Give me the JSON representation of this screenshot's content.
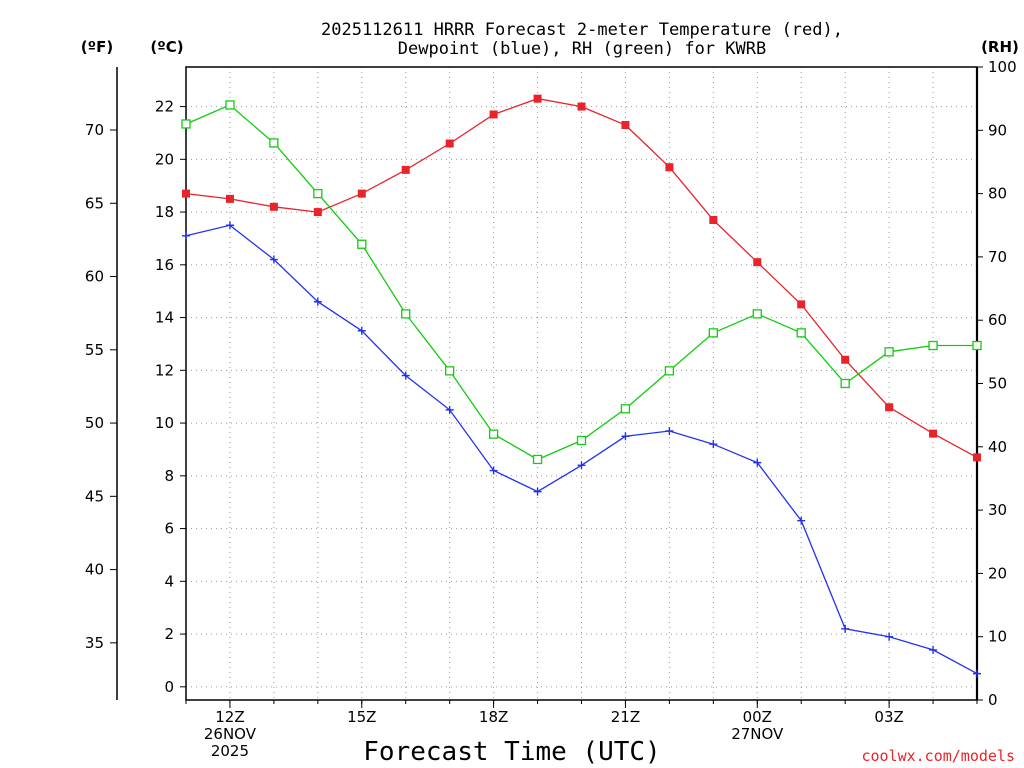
{
  "chart_data": {
    "type": "line",
    "title_line1": "2025112611 HRRR Forecast 2-meter Temperature (red),",
    "title_line2": "Dewpoint (blue), RH (green) for KWRB",
    "xlabel": "Forecast Time (UTC)",
    "credit": "coolwx.com/models",
    "colors": {
      "temperature": "#e8232a",
      "dewpoint": "#2233ee",
      "rh": "#11cc11",
      "grid": "#999999"
    },
    "axes": {
      "left_f": {
        "unit": "(ºF)",
        "ticks": [
          35,
          40,
          45,
          50,
          55,
          60,
          65,
          70
        ]
      },
      "left_c": {
        "unit": "(ºC)",
        "ylim": [
          -0.5,
          23.5
        ],
        "ticks": [
          0,
          2,
          4,
          6,
          8,
          10,
          12,
          14,
          16,
          18,
          20,
          22
        ]
      },
      "right_rh": {
        "unit": "(RH)",
        "ylim": [
          0,
          100
        ],
        "ticks": [
          0,
          10,
          20,
          30,
          40,
          50,
          60,
          70,
          80,
          90,
          100
        ]
      }
    },
    "x": {
      "hours": [
        11,
        12,
        13,
        14,
        15,
        16,
        17,
        18,
        19,
        20,
        21,
        22,
        23,
        24,
        25,
        26,
        27,
        28,
        29
      ],
      "xlim": [
        11,
        29
      ],
      "tick_hours": [
        12,
        15,
        18,
        21,
        24,
        27
      ],
      "tick_labels": [
        [
          "12Z",
          "26NOV",
          "2025"
        ],
        [
          "15Z"
        ],
        [
          "18Z"
        ],
        [
          "21Z"
        ],
        [
          "00Z",
          "27NOV"
        ],
        [
          "03Z"
        ]
      ]
    },
    "series": [
      {
        "name": "Temperature",
        "unit": "C",
        "marker": "filled-square",
        "values": [
          18.7,
          18.5,
          18.2,
          18.0,
          18.7,
          19.6,
          20.6,
          21.7,
          22.3,
          22.0,
          21.3,
          19.7,
          17.7,
          16.1,
          14.5,
          12.4,
          10.6,
          9.6,
          8.7
        ]
      },
      {
        "name": "Dewpoint",
        "unit": "C",
        "marker": "plus",
        "values": [
          17.1,
          17.5,
          16.2,
          14.6,
          13.5,
          11.8,
          10.5,
          8.2,
          7.4,
          8.4,
          9.5,
          9.7,
          9.2,
          8.5,
          6.3,
          2.2,
          1.9,
          1.4,
          0.5
        ]
      },
      {
        "name": "RH",
        "unit": "%",
        "marker": "open-square",
        "values": [
          91,
          94,
          88,
          80,
          72,
          61,
          52,
          42,
          38,
          41,
          46,
          52,
          58,
          61,
          58,
          50,
          55,
          56,
          56
        ]
      }
    ]
  }
}
